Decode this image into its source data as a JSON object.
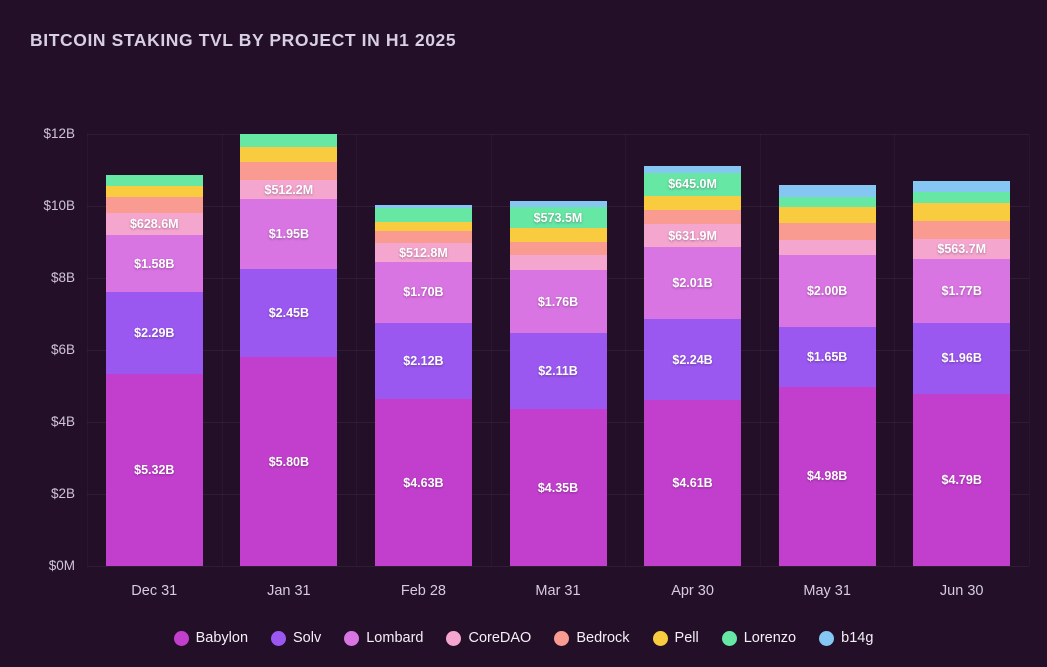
{
  "chart_data": {
    "type": "bar",
    "variant": "stacked",
    "title": "BITCOIN STAKING TVL BY PROJECT IN H1 2025",
    "categories": [
      "Dec 31",
      "Jan 31",
      "Feb 28",
      "Mar 31",
      "Apr 30",
      "May 31",
      "Jun 30"
    ],
    "y_ticks": [
      "$12B",
      "$10B",
      "$8B",
      "$6B",
      "$4B",
      "$2B",
      "$0M"
    ],
    "ylim": [
      0,
      12000
    ],
    "unit": "USD millions",
    "grid": "horizontal-and-faint-vertical",
    "legend_position": "bottom-center",
    "series": [
      {
        "name": "Babylon",
        "color": "#c23fce",
        "values": [
          5320,
          5800,
          4630,
          4350,
          4610,
          4980,
          4790
        ],
        "labels": [
          "$5.32B",
          "$5.80B",
          "$4.63B",
          "$4.35B",
          "$4.61B",
          "$4.98B",
          "$4.79B"
        ]
      },
      {
        "name": "Solv",
        "color": "#9a58f0",
        "values": [
          2290,
          2450,
          2120,
          2110,
          2240,
          1650,
          1960
        ],
        "labels": [
          "$2.29B",
          "$2.45B",
          "$2.12B",
          "$2.11B",
          "$2.24B",
          "$1.65B",
          "$1.96B"
        ]
      },
      {
        "name": "Lombard",
        "color": "#d974e3",
        "values": [
          1580,
          1950,
          1700,
          1760,
          2010,
          2000,
          1770
        ],
        "labels": [
          "$1.58B",
          "$1.95B",
          "$1.70B",
          "$1.76B",
          "$2.01B",
          "$2.00B",
          "$1.77B"
        ]
      },
      {
        "name": "CoreDAO",
        "color": "#f5a6cf",
        "values": [
          628.6,
          512.2,
          512.8,
          420,
          631.9,
          430,
          563.7
        ],
        "labels": [
          "$628.6M",
          "$512.2M",
          "$512.8M",
          null,
          "$631.9M",
          null,
          "$563.7M"
        ]
      },
      {
        "name": "Bedrock",
        "color": "#fa9b91",
        "values": [
          420,
          500,
          350,
          350,
          390,
          460,
          500
        ],
        "labels": [
          null,
          null,
          null,
          null,
          null,
          null,
          null
        ]
      },
      {
        "name": "Pell",
        "color": "#f9cc40",
        "values": [
          330,
          420,
          250,
          400,
          400,
          440,
          510
        ],
        "labels": [
          null,
          null,
          null,
          null,
          null,
          null,
          null
        ]
      },
      {
        "name": "Lorenzo",
        "color": "#67e7a4",
        "values": [
          280,
          370,
          370,
          573.5,
          645,
          300,
          300
        ],
        "labels": [
          null,
          null,
          null,
          "$573.5M",
          "$645.0M",
          null,
          null
        ]
      },
      {
        "name": "b14g",
        "color": "#85c6f2",
        "values": [
          0,
          0,
          90,
          190,
          190,
          320,
          300
        ],
        "labels": [
          null,
          null,
          null,
          null,
          null,
          null,
          null
        ]
      }
    ]
  }
}
